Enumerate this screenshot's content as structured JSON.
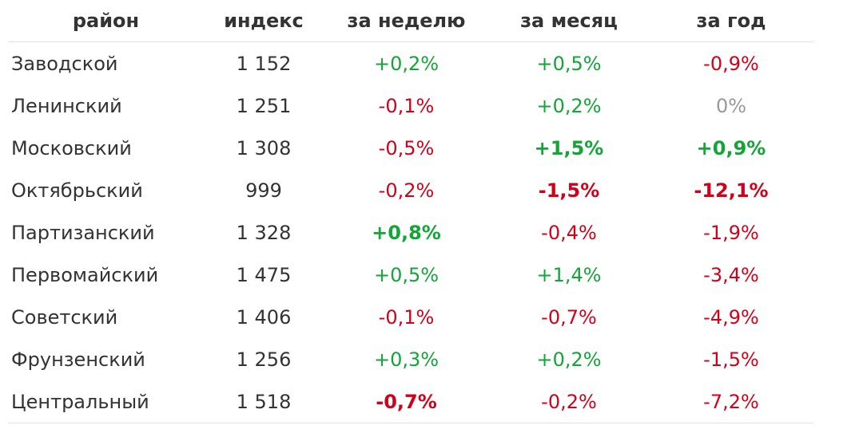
{
  "table": {
    "headers": [
      "район",
      "индекс",
      "за неделю",
      "за месяц",
      "за год"
    ],
    "rows": [
      {
        "district": "Заводской",
        "index": "1 152",
        "week": {
          "text": "+0,2%",
          "sign": "pos",
          "bold": false
        },
        "month": {
          "text": "+0,5%",
          "sign": "pos",
          "bold": false
        },
        "year": {
          "text": "-0,9%",
          "sign": "neg",
          "bold": false
        }
      },
      {
        "district": "Ленинский",
        "index": "1 251",
        "week": {
          "text": "-0,1%",
          "sign": "neg",
          "bold": false
        },
        "month": {
          "text": "+0,2%",
          "sign": "pos",
          "bold": false
        },
        "year": {
          "text": "0%",
          "sign": "zero",
          "bold": false
        }
      },
      {
        "district": "Московский",
        "index": "1 308",
        "week": {
          "text": "-0,5%",
          "sign": "neg",
          "bold": false
        },
        "month": {
          "text": "+1,5%",
          "sign": "pos",
          "bold": true
        },
        "year": {
          "text": "+0,9%",
          "sign": "pos",
          "bold": true
        }
      },
      {
        "district": "Октябрьский",
        "index": "999",
        "week": {
          "text": "-0,2%",
          "sign": "neg",
          "bold": false
        },
        "month": {
          "text": "-1,5%",
          "sign": "neg",
          "bold": true
        },
        "year": {
          "text": "-12,1%",
          "sign": "neg",
          "bold": true
        }
      },
      {
        "district": "Партизанский",
        "index": "1 328",
        "week": {
          "text": "+0,8%",
          "sign": "pos",
          "bold": true
        },
        "month": {
          "text": "-0,4%",
          "sign": "neg",
          "bold": false
        },
        "year": {
          "text": "-1,9%",
          "sign": "neg",
          "bold": false
        }
      },
      {
        "district": "Первомайский",
        "index": "1 475",
        "week": {
          "text": "+0,5%",
          "sign": "pos",
          "bold": false
        },
        "month": {
          "text": "+1,4%",
          "sign": "pos",
          "bold": false
        },
        "year": {
          "text": "-3,4%",
          "sign": "neg",
          "bold": false
        }
      },
      {
        "district": "Советский",
        "index": "1 406",
        "week": {
          "text": "-0,1%",
          "sign": "neg",
          "bold": false
        },
        "month": {
          "text": "-0,7%",
          "sign": "neg",
          "bold": false
        },
        "year": {
          "text": "-4,9%",
          "sign": "neg",
          "bold": false
        }
      },
      {
        "district": "Фрунзенский",
        "index": "1 256",
        "week": {
          "text": "+0,3%",
          "sign": "pos",
          "bold": false
        },
        "month": {
          "text": "+0,2%",
          "sign": "pos",
          "bold": false
        },
        "year": {
          "text": "-1,5%",
          "sign": "neg",
          "bold": false
        }
      },
      {
        "district": "Центральный",
        "index": "1 518",
        "week": {
          "text": "-0,7%",
          "sign": "neg",
          "bold": true
        },
        "month": {
          "text": "-0,2%",
          "sign": "neg",
          "bold": false
        },
        "year": {
          "text": "-7,2%",
          "sign": "neg",
          "bold": false
        }
      }
    ]
  },
  "colors": {
    "positive": "#13a538",
    "negative": "#d0021b",
    "neutral": "#999999",
    "text": "#333333",
    "divider": "#e2e2e2"
  }
}
